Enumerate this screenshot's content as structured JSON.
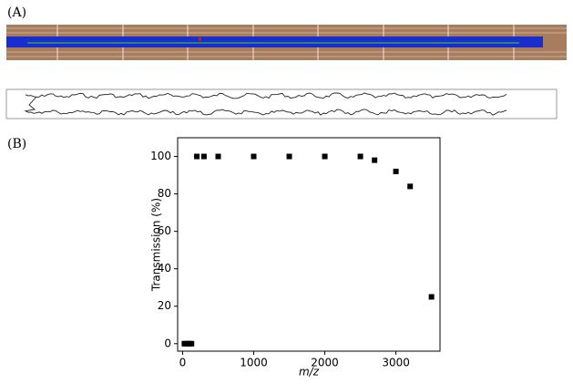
{
  "panel_labels": [
    "(A)",
    "(B)"
  ],
  "chart_data": {
    "type": "scatter",
    "x_label": "m/z",
    "y_label": "Transmission (%)",
    "x": [
      25,
      50,
      75,
      100,
      125,
      200,
      300,
      500,
      1000,
      1500,
      2000,
      2500,
      2700,
      3000,
      3200,
      3500
    ],
    "values": [
      0,
      0,
      0,
      0,
      0,
      100,
      100,
      100,
      100,
      100,
      100,
      100,
      98,
      92,
      84,
      25
    ],
    "color": "#000000",
    "xlim": [
      -70,
      3620
    ],
    "ylim": [
      -4,
      110
    ],
    "xticks": [
      0,
      1000,
      2000,
      3000
    ],
    "yticks": [
      0,
      20,
      40,
      60,
      80,
      100
    ],
    "grid": false
  }
}
